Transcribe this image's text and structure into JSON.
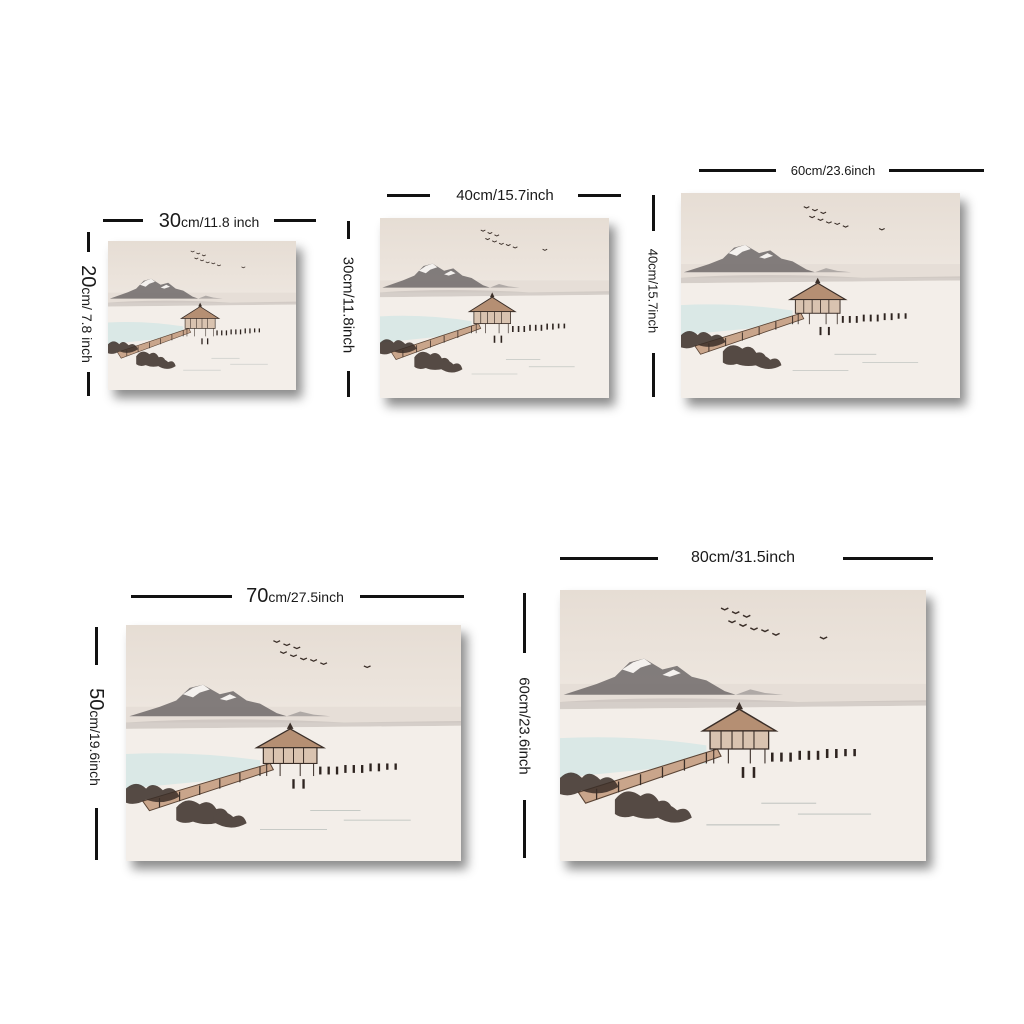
{
  "colors": {
    "background": "#ffffff",
    "line": "#111111",
    "paper": "#efe7df",
    "water": "#cfe6e4",
    "ink": "#3a2e28"
  },
  "painting": {
    "subject": "lakeside pavilion with snowy mountains",
    "icon": "landscape-painting"
  },
  "sizes": [
    {
      "id": "s30x20",
      "width_label_num": "30",
      "width_label_rest": "cm/11.8 inch",
      "height_label_num": "20",
      "height_label_rest": "cm/ 7.8 inch"
    },
    {
      "id": "s40x30",
      "width_label": "40cm/15.7inch",
      "height_label": "30cm/11.8inch"
    },
    {
      "id": "s60x40",
      "width_label": "60cm/23.6inch",
      "height_label": "40cm/15.7inch"
    },
    {
      "id": "s70x50",
      "width_label_num": "70",
      "width_label_rest": "cm/27.5inch",
      "height_label_num": "50",
      "height_label_rest": "cm/19.6inch"
    },
    {
      "id": "s80x60",
      "width_label": "80cm/31.5inch",
      "height_label": "60cm/23.6inch"
    }
  ]
}
